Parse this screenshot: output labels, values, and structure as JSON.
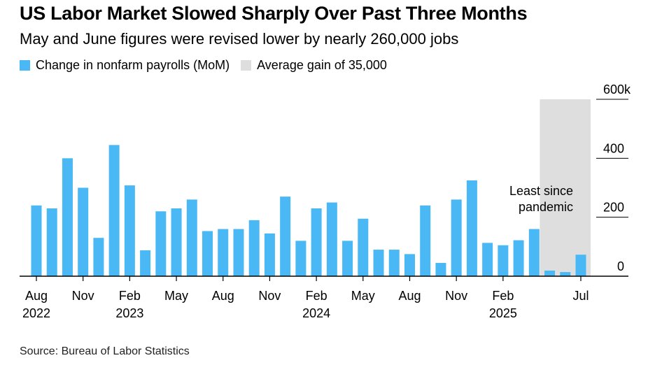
{
  "title": "US Labor Market Slowed Sharply Over Past Three Months",
  "subtitle": "May and June figures were revised lower by nearly 260,000 jobs",
  "source": "Source: Bureau of Labor Statistics",
  "colors": {
    "bar": "#4ab8f5",
    "shade": "#dedede",
    "axis": "#000000",
    "grid": "#000000"
  },
  "chart_data": {
    "type": "bar",
    "title": "US Labor Market Slowed Sharply Over Past Three Months",
    "subtitle": "May and June figures were revised lower by nearly 260,000 jobs",
    "legend": [
      {
        "label": "Change in nonfarm payrolls (MoM)",
        "color": "#4ab8f5"
      },
      {
        "label": "Average gain of 35,000",
        "color": "#dedede"
      }
    ],
    "legend_position": "top-left",
    "y_axis_position": "right",
    "ylim": [
      0,
      600
    ],
    "yticks": [
      0,
      200,
      400,
      600
    ],
    "ytick_labels": [
      "0",
      "200",
      "400",
      "600k"
    ],
    "xtick_labels": [
      {
        "index": 0,
        "lines": [
          "Aug",
          "2022"
        ]
      },
      {
        "index": 3,
        "lines": [
          "Nov"
        ]
      },
      {
        "index": 6,
        "lines": [
          "Feb",
          "2023"
        ]
      },
      {
        "index": 9,
        "lines": [
          "May"
        ]
      },
      {
        "index": 12,
        "lines": [
          "Aug"
        ]
      },
      {
        "index": 15,
        "lines": [
          "Nov"
        ]
      },
      {
        "index": 18,
        "lines": [
          "Feb",
          "2024"
        ]
      },
      {
        "index": 21,
        "lines": [
          "May"
        ]
      },
      {
        "index": 24,
        "lines": [
          "Aug"
        ]
      },
      {
        "index": 27,
        "lines": [
          "Nov"
        ]
      },
      {
        "index": 30,
        "lines": [
          "Feb",
          "2025"
        ]
      },
      {
        "index": 35,
        "lines": [
          "Jul"
        ]
      }
    ],
    "categories": [
      "2022-08",
      "2022-09",
      "2022-10",
      "2022-11",
      "2022-12",
      "2023-01",
      "2023-02",
      "2023-03",
      "2023-04",
      "2023-05",
      "2023-06",
      "2023-07",
      "2023-08",
      "2023-09",
      "2023-10",
      "2023-11",
      "2023-12",
      "2024-01",
      "2024-02",
      "2024-03",
      "2024-04",
      "2024-05",
      "2024-06",
      "2024-07",
      "2024-08",
      "2024-09",
      "2024-10",
      "2024-11",
      "2024-12",
      "2025-01",
      "2025-02",
      "2025-03",
      "2025-04",
      "2025-05",
      "2025-06",
      "2025-07"
    ],
    "series": [
      {
        "name": "Change in nonfarm payrolls (MoM)",
        "values": [
          240,
          230,
          400,
          300,
          130,
          445,
          308,
          88,
          220,
          230,
          260,
          153,
          160,
          160,
          190,
          145,
          270,
          120,
          230,
          250,
          120,
          195,
          90,
          90,
          75,
          240,
          45,
          260,
          325,
          113,
          105,
          122,
          160,
          19,
          14,
          73
        ]
      }
    ],
    "shaded_region": {
      "start": "2025-05",
      "end": "2025-07",
      "label": "Average gain of 35,000"
    },
    "annotation": "Least since pandemic"
  }
}
